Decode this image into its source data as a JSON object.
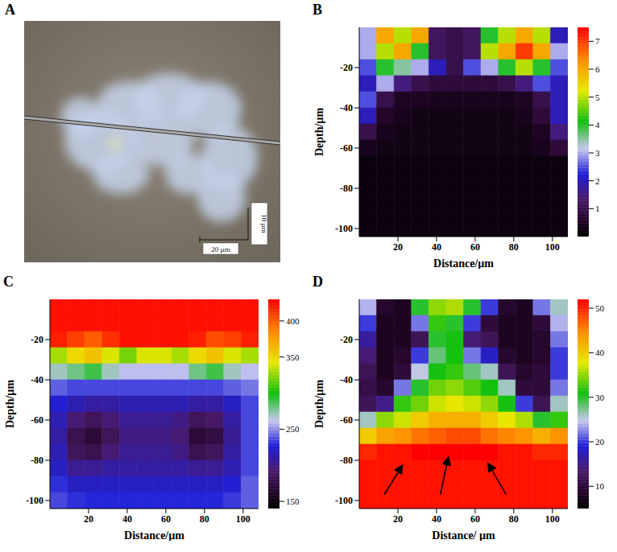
{
  "image": {
    "panel_label": "A",
    "scale_bar_x": "20 µm",
    "scale_bar_y": "10 µm"
  },
  "chart_data": [
    {
      "type": "heatmap",
      "panel_label": "B",
      "x_label": "Distance/µm",
      "y_label": "Depth/µm",
      "xlim": [
        0,
        108
      ],
      "xticks": [
        20,
        40,
        60,
        80,
        100
      ],
      "ylim": [
        -104,
        0
      ],
      "yticks": [
        -100,
        -80,
        -60,
        -40,
        -20
      ],
      "x": [
        4.5,
        13.5,
        22.5,
        31.5,
        40.5,
        49.5,
        58.5,
        67.5,
        76.5,
        85.5,
        94.5,
        103.5
      ],
      "y": [
        -4,
        -12,
        -20,
        -28,
        -36,
        -44,
        -52,
        -60,
        -68,
        -76,
        -84,
        -92,
        -100
      ],
      "cells": [
        [
          3,
          6,
          5,
          6,
          1.2,
          1,
          1.2,
          4,
          5,
          6,
          5,
          2
        ],
        [
          3,
          5,
          6,
          4,
          1.2,
          1,
          1.2,
          5,
          6,
          7,
          6,
          3
        ],
        [
          2.5,
          4,
          3.5,
          3,
          2,
          1,
          2.5,
          3,
          4,
          5,
          4,
          2.5
        ],
        [
          2,
          3,
          1.5,
          1,
          0.8,
          0.8,
          0.8,
          0.8,
          1,
          1.5,
          2.5,
          2
        ],
        [
          2.5,
          1,
          0.5,
          0.5,
          0.4,
          0.4,
          0.4,
          0.4,
          0.4,
          0.5,
          1,
          2
        ],
        [
          2,
          0.6,
          0.4,
          0.3,
          0.3,
          0.3,
          0.3,
          0.3,
          0.3,
          0.4,
          0.8,
          2
        ],
        [
          1,
          0.4,
          0.3,
          0.3,
          0.3,
          0.3,
          0.3,
          0.3,
          0.3,
          0.3,
          0.5,
          1.5
        ],
        [
          0.4,
          0.3,
          0.3,
          0.3,
          0.3,
          0.3,
          0.3,
          0.3,
          0.3,
          0.3,
          0.4,
          0.8
        ],
        [
          0.2,
          0.2,
          0.2,
          0.2,
          0.2,
          0.2,
          0.2,
          0.2,
          0.2,
          0.2,
          0.2,
          0.2
        ],
        [
          0.2,
          0.2,
          0.2,
          0.2,
          0.2,
          0.2,
          0.2,
          0.2,
          0.2,
          0.2,
          0.2,
          0.2
        ],
        [
          0.2,
          0.2,
          0.2,
          0.2,
          0.2,
          0.2,
          0.2,
          0.2,
          0.2,
          0.2,
          0.2,
          0.2
        ],
        [
          0.2,
          0.2,
          0.2,
          0.2,
          0.2,
          0.2,
          0.2,
          0.2,
          0.2,
          0.2,
          0.2,
          0.2
        ],
        [
          0.2,
          0.2,
          0.2,
          0.2,
          0.2,
          0.2,
          0.2,
          0.2,
          0.2,
          0.2,
          0.2,
          0.2
        ]
      ],
      "colorbar_range": [
        0,
        7.5
      ],
      "colorbar_ticks": [
        1,
        2,
        3,
        4,
        5,
        6,
        7
      ]
    },
    {
      "type": "heatmap",
      "panel_label": "C",
      "x_label": "Distance/µm",
      "y_label": "Depth/µm",
      "xlim": [
        0,
        108
      ],
      "xticks": [
        20,
        40,
        60,
        80,
        100
      ],
      "ylim": [
        -104,
        0
      ],
      "yticks": [
        -100,
        -80,
        -60,
        -40,
        -20
      ],
      "x": [
        4.5,
        13.5,
        22.5,
        31.5,
        40.5,
        49.5,
        58.5,
        67.5,
        76.5,
        85.5,
        94.5,
        103.5
      ],
      "y": [
        -4,
        -12,
        -20,
        -28,
        -36,
        -44,
        -52,
        -60,
        -68,
        -76,
        -84,
        -92,
        -100
      ],
      "cells": [
        [
          425,
          425,
          425,
          425,
          425,
          425,
          425,
          425,
          425,
          425,
          425,
          425
        ],
        [
          425,
          425,
          425,
          425,
          425,
          425,
          425,
          425,
          425,
          425,
          425,
          425
        ],
        [
          420,
          410,
          400,
          415,
          425,
          425,
          425,
          425,
          420,
          405,
          410,
          420
        ],
        [
          330,
          350,
          360,
          340,
          320,
          340,
          340,
          330,
          350,
          360,
          340,
          330
        ],
        [
          270,
          280,
          290,
          270,
          260,
          260,
          260,
          260,
          280,
          290,
          270,
          260
        ],
        [
          240,
          235,
          235,
          235,
          235,
          235,
          235,
          235,
          235,
          235,
          240,
          245
        ],
        [
          225,
          215,
          210,
          210,
          215,
          215,
          215,
          215,
          210,
          210,
          220,
          235
        ],
        [
          215,
          195,
          185,
          195,
          205,
          205,
          205,
          200,
          185,
          190,
          210,
          235
        ],
        [
          210,
          180,
          170,
          185,
          200,
          200,
          200,
          195,
          170,
          175,
          205,
          235
        ],
        [
          215,
          185,
          180,
          195,
          205,
          205,
          205,
          200,
          180,
          185,
          210,
          235
        ],
        [
          220,
          205,
          205,
          210,
          210,
          210,
          210,
          210,
          205,
          205,
          215,
          235
        ],
        [
          230,
          220,
          220,
          220,
          220,
          220,
          220,
          220,
          220,
          220,
          225,
          240
        ],
        [
          235,
          230,
          228,
          228,
          228,
          228,
          228,
          228,
          228,
          228,
          232,
          240
        ]
      ],
      "colorbar_range": [
        140,
        430
      ],
      "colorbar_ticks": [
        150,
        250,
        350,
        400
      ]
    },
    {
      "type": "heatmap",
      "panel_label": "D",
      "x_label": "Distance/ µm",
      "y_label": "Depth/µm",
      "xlim": [
        0,
        108
      ],
      "xticks": [
        20,
        40,
        60,
        80,
        100
      ],
      "ylim": [
        -104,
        0
      ],
      "yticks": [
        -100,
        -80,
        -60,
        -40,
        -20
      ],
      "x": [
        4.5,
        13.5,
        22.5,
        31.5,
        40.5,
        49.5,
        58.5,
        67.5,
        76.5,
        85.5,
        94.5,
        103.5
      ],
      "y": [
        -4,
        -12,
        -20,
        -28,
        -36,
        -44,
        -52,
        -60,
        -68,
        -76,
        -84,
        -92,
        -100
      ],
      "cells": [
        [
          24,
          9,
          8,
          30,
          35,
          36,
          30,
          20,
          9,
          8,
          22,
          26
        ],
        [
          20,
          8,
          8,
          22,
          32,
          30,
          20,
          10,
          8,
          8,
          10,
          24
        ],
        [
          16,
          8,
          8,
          12,
          30,
          31,
          14,
          12,
          8,
          8,
          9,
          22
        ],
        [
          14,
          8,
          9,
          20,
          28,
          31,
          22,
          18,
          9,
          8,
          9,
          20
        ],
        [
          12,
          8,
          10,
          25,
          31,
          32,
          28,
          26,
          12,
          9,
          10,
          20
        ],
        [
          11,
          9,
          22,
          30,
          34,
          35,
          33,
          31,
          26,
          10,
          10,
          22
        ],
        [
          12,
          15,
          32,
          34,
          37,
          38,
          37,
          35,
          31,
          20,
          12,
          26
        ],
        [
          26,
          35,
          37,
          40,
          42,
          42,
          42,
          40,
          38,
          36,
          30,
          32
        ],
        [
          40,
          43,
          44,
          46,
          47,
          48,
          48,
          46,
          45,
          44,
          42,
          44
        ],
        [
          50,
          51,
          51,
          52,
          52,
          52,
          52,
          52,
          51,
          51,
          50,
          50
        ],
        [
          51,
          51,
          51,
          51,
          51,
          51,
          51,
          51,
          51,
          51,
          51,
          51
        ],
        [
          51,
          51,
          51,
          51,
          51,
          51,
          51,
          51,
          51,
          51,
          51,
          51
        ],
        [
          51,
          51,
          51,
          51,
          51,
          51,
          51,
          51,
          51,
          51,
          51,
          51
        ]
      ],
      "colorbar_range": [
        5,
        52
      ],
      "colorbar_ticks": [
        10,
        20,
        30,
        40,
        50
      ]
    }
  ]
}
